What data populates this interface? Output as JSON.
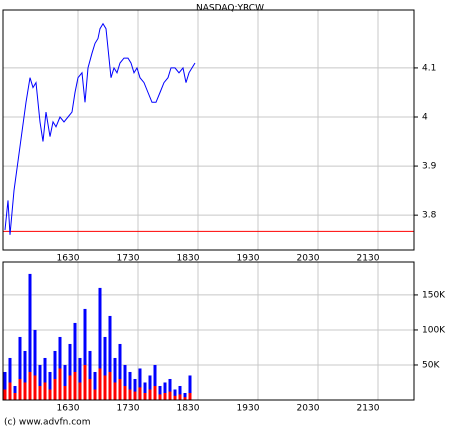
{
  "chart_data": [
    {
      "type": "line",
      "title": "NASDAQ:YRCW",
      "x": [
        927,
        930,
        932,
        936,
        940,
        944,
        948,
        952,
        955,
        958,
        962,
        965,
        968,
        972,
        975,
        978,
        982,
        986,
        990,
        994,
        997,
        1000,
        1004,
        1007,
        1010,
        1014,
        1017,
        1020,
        1022,
        1025,
        1028,
        1030,
        1033,
        1036,
        1039,
        1042,
        1046,
        1050,
        1053,
        1056,
        1059,
        1062,
        1066,
        1070,
        1074,
        1078,
        1082,
        1086,
        1090,
        1093,
        1097,
        1101,
        1105,
        1108,
        1111,
        1114,
        1117
      ],
      "values": [
        3.77,
        3.83,
        3.76,
        3.85,
        3.91,
        3.97,
        4.03,
        4.08,
        4.06,
        4.07,
        3.99,
        3.95,
        4.01,
        3.96,
        3.99,
        3.98,
        4.0,
        3.99,
        4.0,
        4.01,
        4.05,
        4.08,
        4.09,
        4.03,
        4.1,
        4.13,
        4.15,
        4.16,
        4.18,
        4.19,
        4.18,
        4.14,
        4.08,
        4.1,
        4.09,
        4.11,
        4.12,
        4.12,
        4.11,
        4.09,
        4.1,
        4.08,
        4.07,
        4.05,
        4.03,
        4.03,
        4.05,
        4.07,
        4.08,
        4.1,
        4.1,
        4.09,
        4.1,
        4.07,
        4.09,
        4.1,
        4.11
      ],
      "color": "#0000ff",
      "hline": 3.767,
      "hline_color": "#ff0000",
      "xlim": [
        925,
        1336
      ],
      "xticks": [
        {
          "value": 990,
          "label": "1630"
        },
        {
          "value": 1050,
          "label": "1730"
        },
        {
          "value": 1110,
          "label": "1830"
        },
        {
          "value": 1170,
          "label": "1930"
        },
        {
          "value": 1230,
          "label": "2030"
        },
        {
          "value": 1290,
          "label": "2130"
        }
      ],
      "ylim": [
        3.729,
        4.218
      ],
      "yticks": [
        3.8,
        3.9,
        4,
        4.1
      ],
      "grid": true
    },
    {
      "type": "bar",
      "x": [
        927,
        932,
        937,
        942,
        947,
        952,
        957,
        962,
        967,
        972,
        977,
        982,
        987,
        992,
        997,
        1002,
        1007,
        1012,
        1017,
        1022,
        1027,
        1032,
        1037,
        1042,
        1047,
        1052,
        1057,
        1062,
        1067,
        1072,
        1077,
        1082,
        1087,
        1092,
        1097,
        1102,
        1107,
        1112
      ],
      "series": [
        {
          "color": "#0000ff",
          "values": [
            40000,
            60000,
            20000,
            90000,
            70000,
            180000,
            100000,
            50000,
            60000,
            40000,
            70000,
            90000,
            50000,
            80000,
            110000,
            60000,
            130000,
            70000,
            40000,
            160000,
            90000,
            120000,
            60000,
            80000,
            50000,
            40000,
            30000,
            45000,
            25000,
            35000,
            50000,
            20000,
            25000,
            30000,
            15000,
            20000,
            10000,
            35000
          ]
        },
        {
          "color": "#ff0000",
          "values": [
            15000,
            25000,
            10000,
            30000,
            25000,
            40000,
            35000,
            20000,
            25000,
            15000,
            30000,
            45000,
            20000,
            35000,
            40000,
            25000,
            50000,
            30000,
            15000,
            45000,
            35000,
            40000,
            25000,
            30000,
            20000,
            15000,
            12000,
            18000,
            10000,
            15000,
            20000,
            8000,
            10000,
            12000,
            6000,
            8000,
            4000,
            10000
          ]
        }
      ],
      "xlim": [
        925,
        1336
      ],
      "xticks": [
        {
          "value": 990,
          "label": "1630"
        },
        {
          "value": 1050,
          "label": "1730"
        },
        {
          "value": 1110,
          "label": "1830"
        },
        {
          "value": 1170,
          "label": "1930"
        },
        {
          "value": 1230,
          "label": "2030"
        },
        {
          "value": 1290,
          "label": "2130"
        }
      ],
      "ylim": [
        0,
        197000
      ],
      "yticks": [
        {
          "value": 50000,
          "label": "50K"
        },
        {
          "value": 100000,
          "label": "100K"
        },
        {
          "value": 150000,
          "label": "150K"
        }
      ],
      "grid": true
    }
  ],
  "footer": "(c) www.advfn.com"
}
